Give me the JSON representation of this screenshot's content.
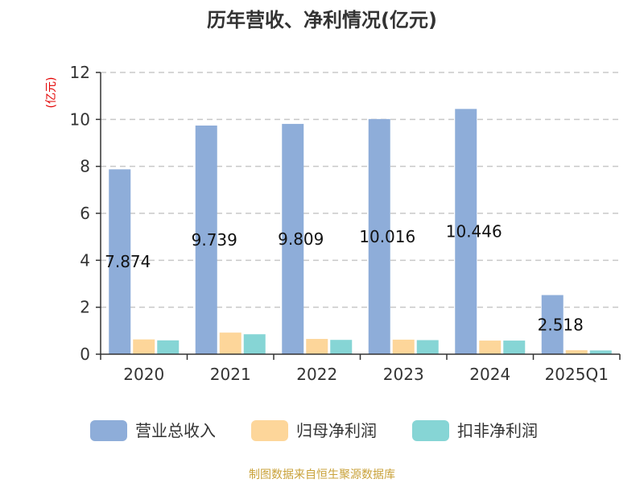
{
  "chart_data": {
    "type": "bar",
    "title": "历年营收、净利情况(亿元)",
    "ylabel": "(亿元)",
    "categories": [
      "2020",
      "2021",
      "2022",
      "2023",
      "2024",
      "2025Q1"
    ],
    "ylim": [
      0,
      12
    ],
    "yticks": [
      0,
      2,
      4,
      6,
      8,
      10,
      12
    ],
    "grid": true,
    "legend_position": "bottom",
    "series": [
      {
        "name": "营业总收入",
        "color": "#8eadd9",
        "values": [
          7.874,
          9.739,
          9.809,
          10.016,
          10.446,
          2.518
        ]
      },
      {
        "name": "归母净利润",
        "color": "#fdd69a",
        "values": [
          0.63,
          0.92,
          0.65,
          0.62,
          0.58,
          0.17
        ]
      },
      {
        "name": "扣非净利润",
        "color": "#86d5d5",
        "values": [
          0.59,
          0.85,
          0.61,
          0.6,
          0.58,
          0.16
        ]
      }
    ],
    "data_labels": [
      "7.874",
      "9.739",
      "9.809",
      "10.016",
      "10.446",
      "2.518"
    ]
  },
  "source": "制图数据来自恒生聚源数据库"
}
